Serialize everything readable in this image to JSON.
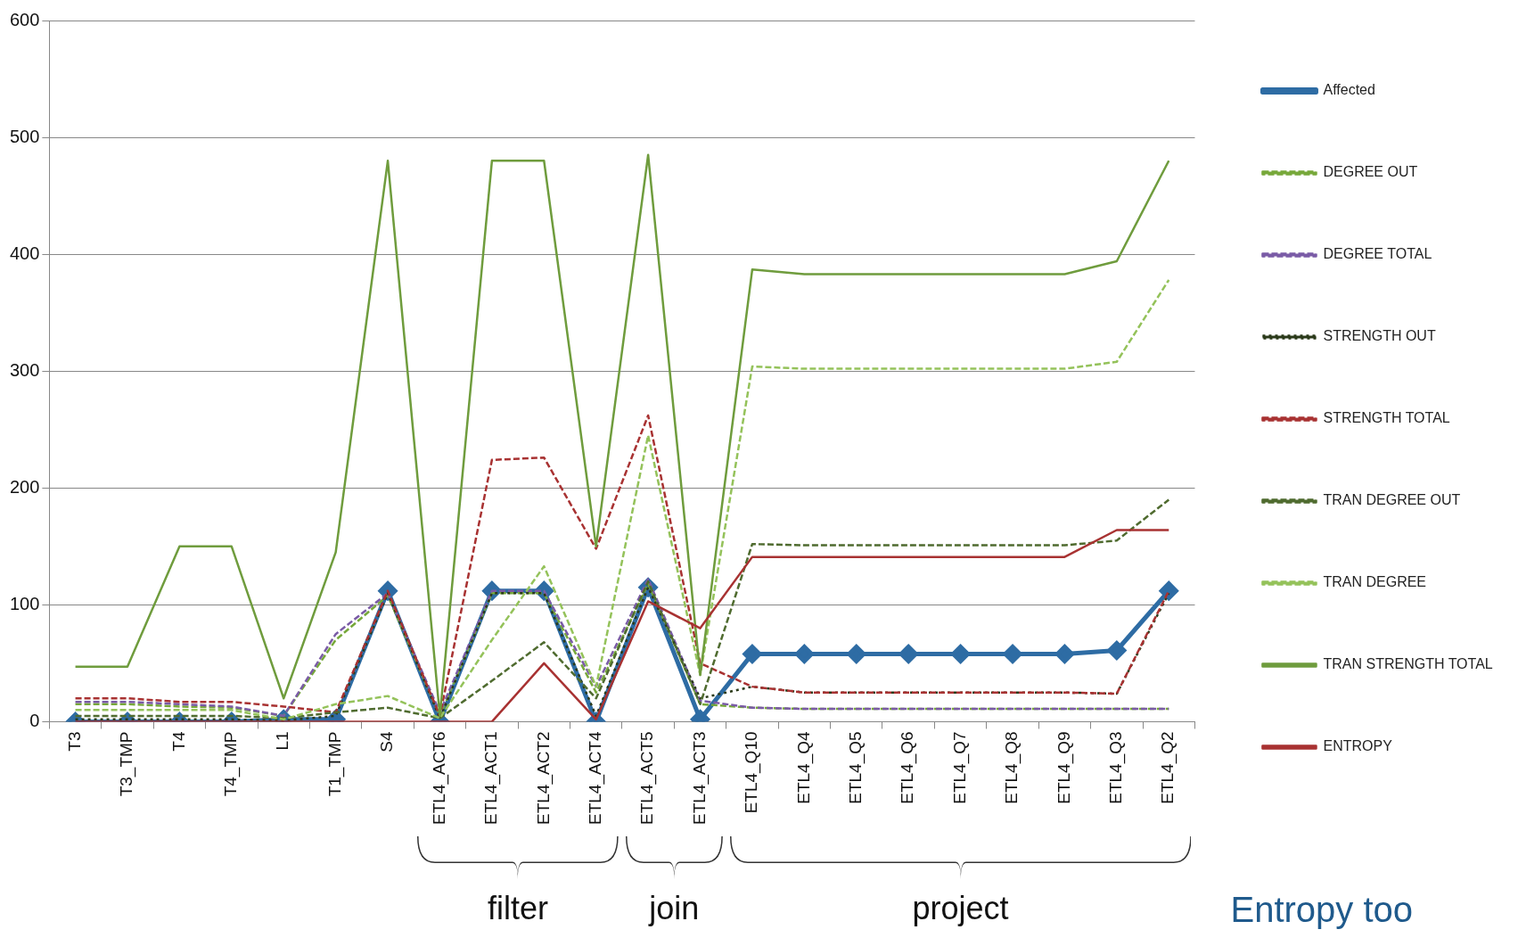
{
  "chart_data": {
    "type": "line",
    "categories": [
      "T3",
      "T3_TMP",
      "T4",
      "T4_TMP",
      "L1",
      "T1_TMP",
      "S4",
      "ETL4_ACT6",
      "ETL4_ACT1",
      "ETL4_ACT2",
      "ETL4_ACT4",
      "ETL4_ACT5",
      "ETL4_ACT3",
      "ETL4_Q10",
      "ETL4_Q4",
      "ETL4_Q5",
      "ETL4_Q6",
      "ETL4_Q7",
      "ETL4_Q8",
      "ETL4_Q9",
      "ETL4_Q3",
      "ETL4_Q2"
    ],
    "series": [
      {
        "name": "Affected",
        "color": "#2e6ca4",
        "marker": "diamond",
        "line_style": "solid",
        "values": [
          0,
          0,
          0,
          0,
          2,
          2,
          112,
          0,
          112,
          112,
          0,
          115,
          2,
          58,
          58,
          58,
          58,
          58,
          58,
          58,
          61,
          112
        ]
      },
      {
        "name": "DEGREE OUT",
        "color": "#77a83a",
        "line_style": "dashed",
        "values": [
          15,
          15,
          13,
          12,
          5,
          70,
          108,
          5,
          110,
          110,
          25,
          118,
          15,
          12,
          11,
          11,
          11,
          11,
          11,
          11,
          11,
          11
        ]
      },
      {
        "name": "DEGREE TOTAL",
        "color": "#7a5ba6",
        "line_style": "dashed",
        "values": [
          17,
          17,
          15,
          13,
          5,
          75,
          110,
          8,
          112,
          112,
          30,
          122,
          18,
          12,
          11,
          11,
          11,
          11,
          11,
          11,
          11,
          11
        ]
      },
      {
        "name": "STRENGTH OUT",
        "color": "#2b3a1a",
        "line_style": "dotted",
        "values": [
          2,
          2,
          2,
          2,
          1,
          5,
          110,
          3,
          110,
          110,
          5,
          115,
          20,
          30,
          25,
          25,
          25,
          25,
          25,
          25,
          24,
          110
        ]
      },
      {
        "name": "STRENGTH TOTAL",
        "color": "#a83232",
        "line_style": "dashed",
        "values": [
          20,
          20,
          17,
          17,
          13,
          8,
          112,
          5,
          224,
          226,
          148,
          262,
          50,
          30,
          25,
          25,
          25,
          25,
          25,
          25,
          24,
          112
        ]
      },
      {
        "name": "TRAN DEGREE OUT",
        "color": "#4f6b2f",
        "line_style": "dashed",
        "values": [
          5,
          5,
          5,
          5,
          3,
          8,
          12,
          3,
          35,
          68,
          20,
          120,
          15,
          152,
          151,
          151,
          151,
          151,
          151,
          151,
          155,
          190
        ]
      },
      {
        "name": "TRAN DEGREE",
        "color": "#94c25a",
        "line_style": "dashed",
        "values": [
          10,
          10,
          10,
          10,
          2,
          15,
          22,
          3,
          70,
          133,
          30,
          245,
          40,
          304,
          302,
          302,
          302,
          302,
          302,
          302,
          308,
          378
        ]
      },
      {
        "name": "TRAN STRENGTH TOTAL",
        "color": "#6f9c3d",
        "line_style": "solid",
        "values": [
          47,
          47,
          150,
          150,
          20,
          145,
          480,
          5,
          480,
          480,
          150,
          485,
          40,
          387,
          383,
          383,
          383,
          383,
          383,
          383,
          394,
          480
        ]
      },
      {
        "name": "ENTROPY",
        "color": "#a83232",
        "line_style": "solid",
        "values": [
          0,
          0,
          0,
          0,
          0,
          0,
          0,
          0,
          0,
          50,
          2,
          103,
          80,
          141,
          141,
          141,
          141,
          141,
          141,
          141,
          164,
          164
        ]
      }
    ],
    "ylim": [
      0,
      600
    ],
    "yticks": [
      0,
      100,
      200,
      300,
      400,
      500,
      600
    ],
    "grid": "y",
    "legend": "right",
    "marker": "none",
    "annotations": [
      "filter",
      "join",
      "project",
      "Entropy too"
    ]
  }
}
